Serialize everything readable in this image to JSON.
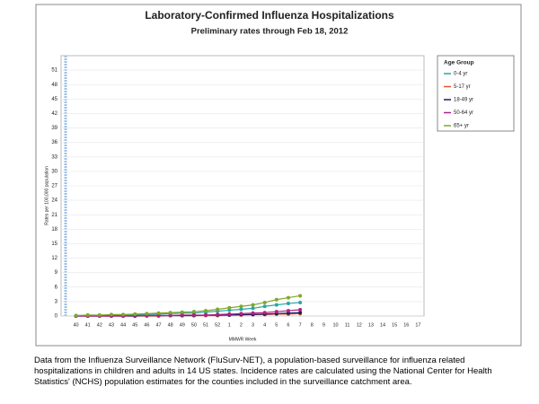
{
  "chart_data": {
    "type": "line",
    "title": "Laboratory-Confirmed Influenza Hospitalizations",
    "subtitle": "Preliminary rates through Feb 18, 2012",
    "x_label": "MMWR Week",
    "y_label": "Rates per 100,000 population",
    "legend_title": "Age Group",
    "categories": [
      "40",
      "41",
      "42",
      "43",
      "44",
      "45",
      "46",
      "47",
      "48",
      "49",
      "50",
      "51",
      "52",
      "1",
      "2",
      "3",
      "4",
      "5",
      "6",
      "7",
      "8",
      "9",
      "10",
      "11",
      "12",
      "13",
      "14",
      "15",
      "16",
      "17"
    ],
    "ylim": [
      0,
      54
    ],
    "yticks": [
      0,
      3,
      6,
      9,
      12,
      15,
      18,
      21,
      24,
      27,
      30,
      33,
      36,
      39,
      42,
      45,
      48,
      51
    ],
    "grid": true,
    "series": [
      {
        "name": "0-4 yr",
        "color": "#2aa6a6",
        "values": [
          0.1,
          0.1,
          0.1,
          0.2,
          0.2,
          0.3,
          0.3,
          0.4,
          0.5,
          0.6,
          0.6,
          0.8,
          1.0,
          1.2,
          1.4,
          1.6,
          2.0,
          2.3,
          2.6,
          2.8,
          null,
          null,
          null,
          null,
          null,
          null,
          null,
          null,
          null,
          null
        ]
      },
      {
        "name": "5-17 yr",
        "color": "#e0552b",
        "values": [
          0,
          0,
          0,
          0,
          0,
          0,
          0,
          0,
          0.1,
          0.1,
          0.1,
          0.1,
          0.1,
          0.2,
          0.2,
          0.3,
          0.3,
          0.4,
          0.4,
          0.5,
          null,
          null,
          null,
          null,
          null,
          null,
          null,
          null,
          null,
          null
        ]
      },
      {
        "name": "18-49 yr",
        "color": "#1e1e5a",
        "values": [
          0,
          0,
          0,
          0,
          0,
          0,
          0.1,
          0.1,
          0.1,
          0.1,
          0.1,
          0.2,
          0.2,
          0.2,
          0.3,
          0.3,
          0.4,
          0.5,
          0.6,
          0.7,
          null,
          null,
          null,
          null,
          null,
          null,
          null,
          null,
          null,
          null
        ]
      },
      {
        "name": "50-64 yr",
        "color": "#b0208a",
        "values": [
          0,
          0,
          0,
          0,
          0,
          0.1,
          0.1,
          0.1,
          0.1,
          0.2,
          0.2,
          0.2,
          0.3,
          0.4,
          0.5,
          0.6,
          0.7,
          0.9,
          1.1,
          1.3,
          null,
          null,
          null,
          null,
          null,
          null,
          null,
          null,
          null,
          null
        ]
      },
      {
        "name": "65+ yr",
        "color": "#7fa82c",
        "values": [
          0.1,
          0.2,
          0.2,
          0.3,
          0.3,
          0.4,
          0.5,
          0.6,
          0.7,
          0.8,
          0.9,
          1.1,
          1.4,
          1.7,
          2.0,
          2.3,
          2.8,
          3.4,
          3.8,
          4.2,
          null,
          null,
          null,
          null,
          null,
          null,
          null,
          null,
          null,
          null
        ]
      }
    ]
  },
  "caption": "Data from the Influenza Surveillance Network (FluSurv-NET),  a population-based surveillance for influenza related hospitalizations in children and adults in 14 US states.  Incidence rates are calculated using the National Center for Health Statistics' (NCHS) population estimates for the counties included in the surveillance catchment area."
}
